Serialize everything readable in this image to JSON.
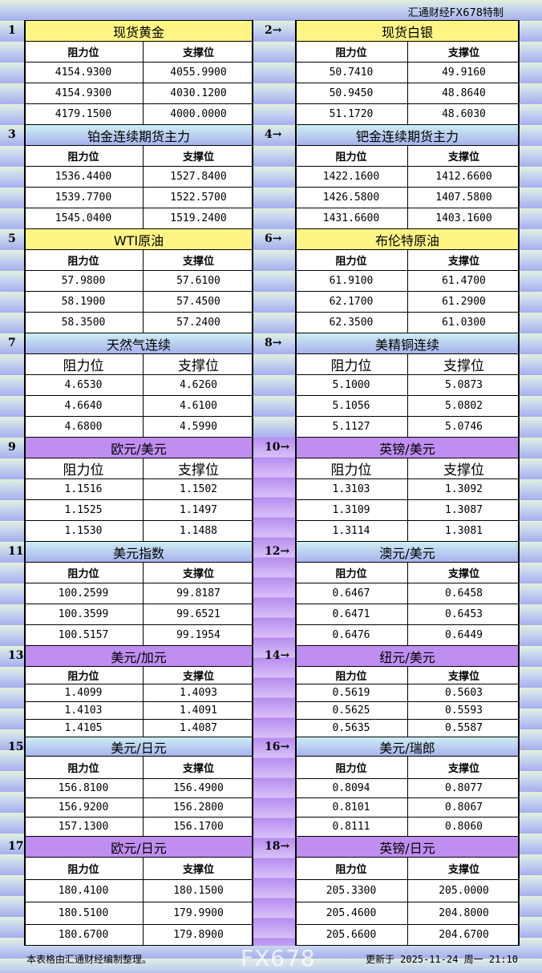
{
  "brand": "汇通财经FX678特制",
  "col_headers": {
    "resistance": "阻力位",
    "support": "支撑位"
  },
  "sections": [
    {
      "num": "1",
      "title": "现货黄金",
      "color": "yellow",
      "rows": [
        [
          "4154.9300",
          "4055.9900"
        ],
        [
          "4154.9300",
          "4030.1200"
        ],
        [
          "4179.1500",
          "4000.0000"
        ]
      ]
    },
    {
      "num": "2→",
      "title": "现货白银",
      "color": "yellow",
      "rows": [
        [
          "50.7410",
          "49.9160"
        ],
        [
          "50.9450",
          "48.8640"
        ],
        [
          "51.1720",
          "48.6030"
        ]
      ]
    },
    {
      "num": "3",
      "title": "铂金连续期货主力",
      "color": "blue",
      "rows": [
        [
          "1536.4400",
          "1527.8400"
        ],
        [
          "1539.7700",
          "1522.5700"
        ],
        [
          "1545.0400",
          "1519.2400"
        ]
      ]
    },
    {
      "num": "4→",
      "title": "钯金连续期货主力",
      "color": "blue",
      "rows": [
        [
          "1422.1600",
          "1412.6600"
        ],
        [
          "1426.5800",
          "1407.5800"
        ],
        [
          "1431.6600",
          "1403.1600"
        ]
      ]
    },
    {
      "num": "5",
      "title": "WTI原油",
      "color": "yellow",
      "rows": [
        [
          "57.9800",
          "57.6100"
        ],
        [
          "58.1900",
          "57.4500"
        ],
        [
          "58.3500",
          "57.2400"
        ]
      ]
    },
    {
      "num": "6→",
      "title": "布伦特原油",
      "color": "yellow",
      "rows": [
        [
          "61.9100",
          "61.4700"
        ],
        [
          "62.1700",
          "61.2900"
        ],
        [
          "62.3500",
          "61.0300"
        ]
      ]
    },
    {
      "num": "7",
      "title": "天然气连续",
      "color": "blue",
      "rows": [
        [
          "4.6530",
          "4.6260"
        ],
        [
          "4.6640",
          "4.6100"
        ],
        [
          "4.6800",
          "4.5990"
        ]
      ]
    },
    {
      "num": "8→",
      "title": "美精铜连续",
      "color": "blue",
      "rows": [
        [
          "5.1000",
          "5.0873"
        ],
        [
          "5.1056",
          "5.0802"
        ],
        [
          "5.1127",
          "5.0746"
        ]
      ]
    },
    {
      "num": "9",
      "title": "欧元/美元",
      "color": "purple",
      "rows": [
        [
          "1.1516",
          "1.1502"
        ],
        [
          "1.1525",
          "1.1497"
        ],
        [
          "1.1530",
          "1.1488"
        ]
      ]
    },
    {
      "num": "10→",
      "title": "英镑/美元",
      "color": "purple",
      "rows": [
        [
          "1.3103",
          "1.3092"
        ],
        [
          "1.3109",
          "1.3087"
        ],
        [
          "1.3114",
          "1.3081"
        ]
      ]
    },
    {
      "num": "11",
      "title": "美元指数",
      "color": "blue",
      "rows": [
        [
          "100.2599",
          "99.8187"
        ],
        [
          "100.3599",
          "99.6521"
        ],
        [
          "100.5157",
          "99.1954"
        ]
      ]
    },
    {
      "num": "12→",
      "title": "澳元/美元",
      "color": "blue",
      "rows": [
        [
          "0.6467",
          "0.6458"
        ],
        [
          "0.6471",
          "0.6453"
        ],
        [
          "0.6476",
          "0.6449"
        ]
      ]
    },
    {
      "num": "13",
      "title": "美元/加元",
      "color": "purple",
      "rows": [
        [
          "1.4099",
          "1.4093"
        ],
        [
          "1.4103",
          "1.4091"
        ],
        [
          "1.4105",
          "1.4087"
        ]
      ]
    },
    {
      "num": "14→",
      "title": "纽元/美元",
      "color": "purple",
      "rows": [
        [
          "0.5619",
          "0.5603"
        ],
        [
          "0.5625",
          "0.5593"
        ],
        [
          "0.5635",
          "0.5587"
        ]
      ]
    },
    {
      "num": "15",
      "title": "美元/日元",
      "color": "blue",
      "rows": [
        [
          "156.8100",
          "156.4900"
        ],
        [
          "156.9200",
          "156.2800"
        ],
        [
          "157.1300",
          "156.1700"
        ]
      ]
    },
    {
      "num": "16→",
      "title": "美元/瑞郎",
      "color": "blue",
      "rows": [
        [
          "0.8094",
          "0.8077"
        ],
        [
          "0.8101",
          "0.8067"
        ],
        [
          "0.8111",
          "0.8060"
        ]
      ]
    },
    {
      "num": "17",
      "title": "欧元/日元",
      "color": "purple",
      "rows": [
        [
          "180.4100",
          "180.1500"
        ],
        [
          "180.5100",
          "179.9900"
        ],
        [
          "180.6700",
          "179.8900"
        ]
      ]
    },
    {
      "num": "18→",
      "title": "英镑/日元",
      "color": "purple",
      "rows": [
        [
          "205.3300",
          "205.0000"
        ],
        [
          "205.4600",
          "204.8000"
        ],
        [
          "205.6600",
          "204.6700"
        ]
      ]
    }
  ],
  "footer": {
    "note": "本表格由汇通财经编制整理。",
    "updated": "更新于 2025-11-24 周一 21:10"
  },
  "watermark": "FX678"
}
